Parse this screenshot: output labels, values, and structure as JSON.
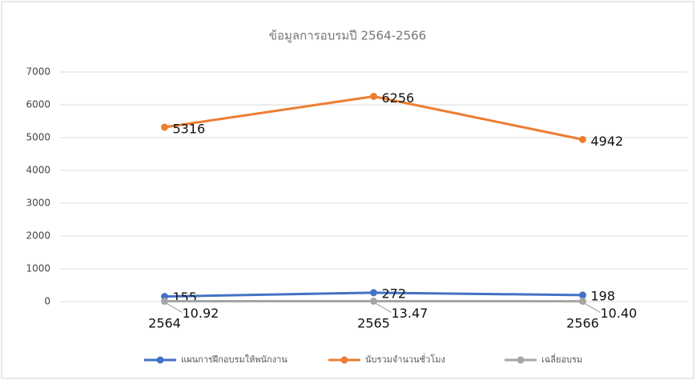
{
  "chart_data": {
    "type": "line",
    "title": "ข้อมูลการอบรมปี 2564-2566",
    "categories": [
      "2564",
      "2565",
      "2566"
    ],
    "series": [
      {
        "name": "แผนการฝึกอบรมให้พนักงาน",
        "color": "#4472c4",
        "values": [
          155,
          272,
          198
        ]
      },
      {
        "name": "นับรวมจำนวนชั่วโมง",
        "color": "#ed7d31",
        "values": [
          5316,
          6256,
          4942
        ]
      },
      {
        "name": "เฉลี่ยอบรม",
        "color": "#a5a5a5",
        "values": [
          10.92,
          13.47,
          10.4
        ],
        "value_labels": [
          "10.92",
          "13.47",
          "10.40"
        ]
      }
    ],
    "ylim": [
      0,
      7000
    ],
    "yticks": [
      0,
      1000,
      2000,
      3000,
      4000,
      5000,
      6000,
      7000
    ],
    "grid": true,
    "legend": "bottom"
  }
}
